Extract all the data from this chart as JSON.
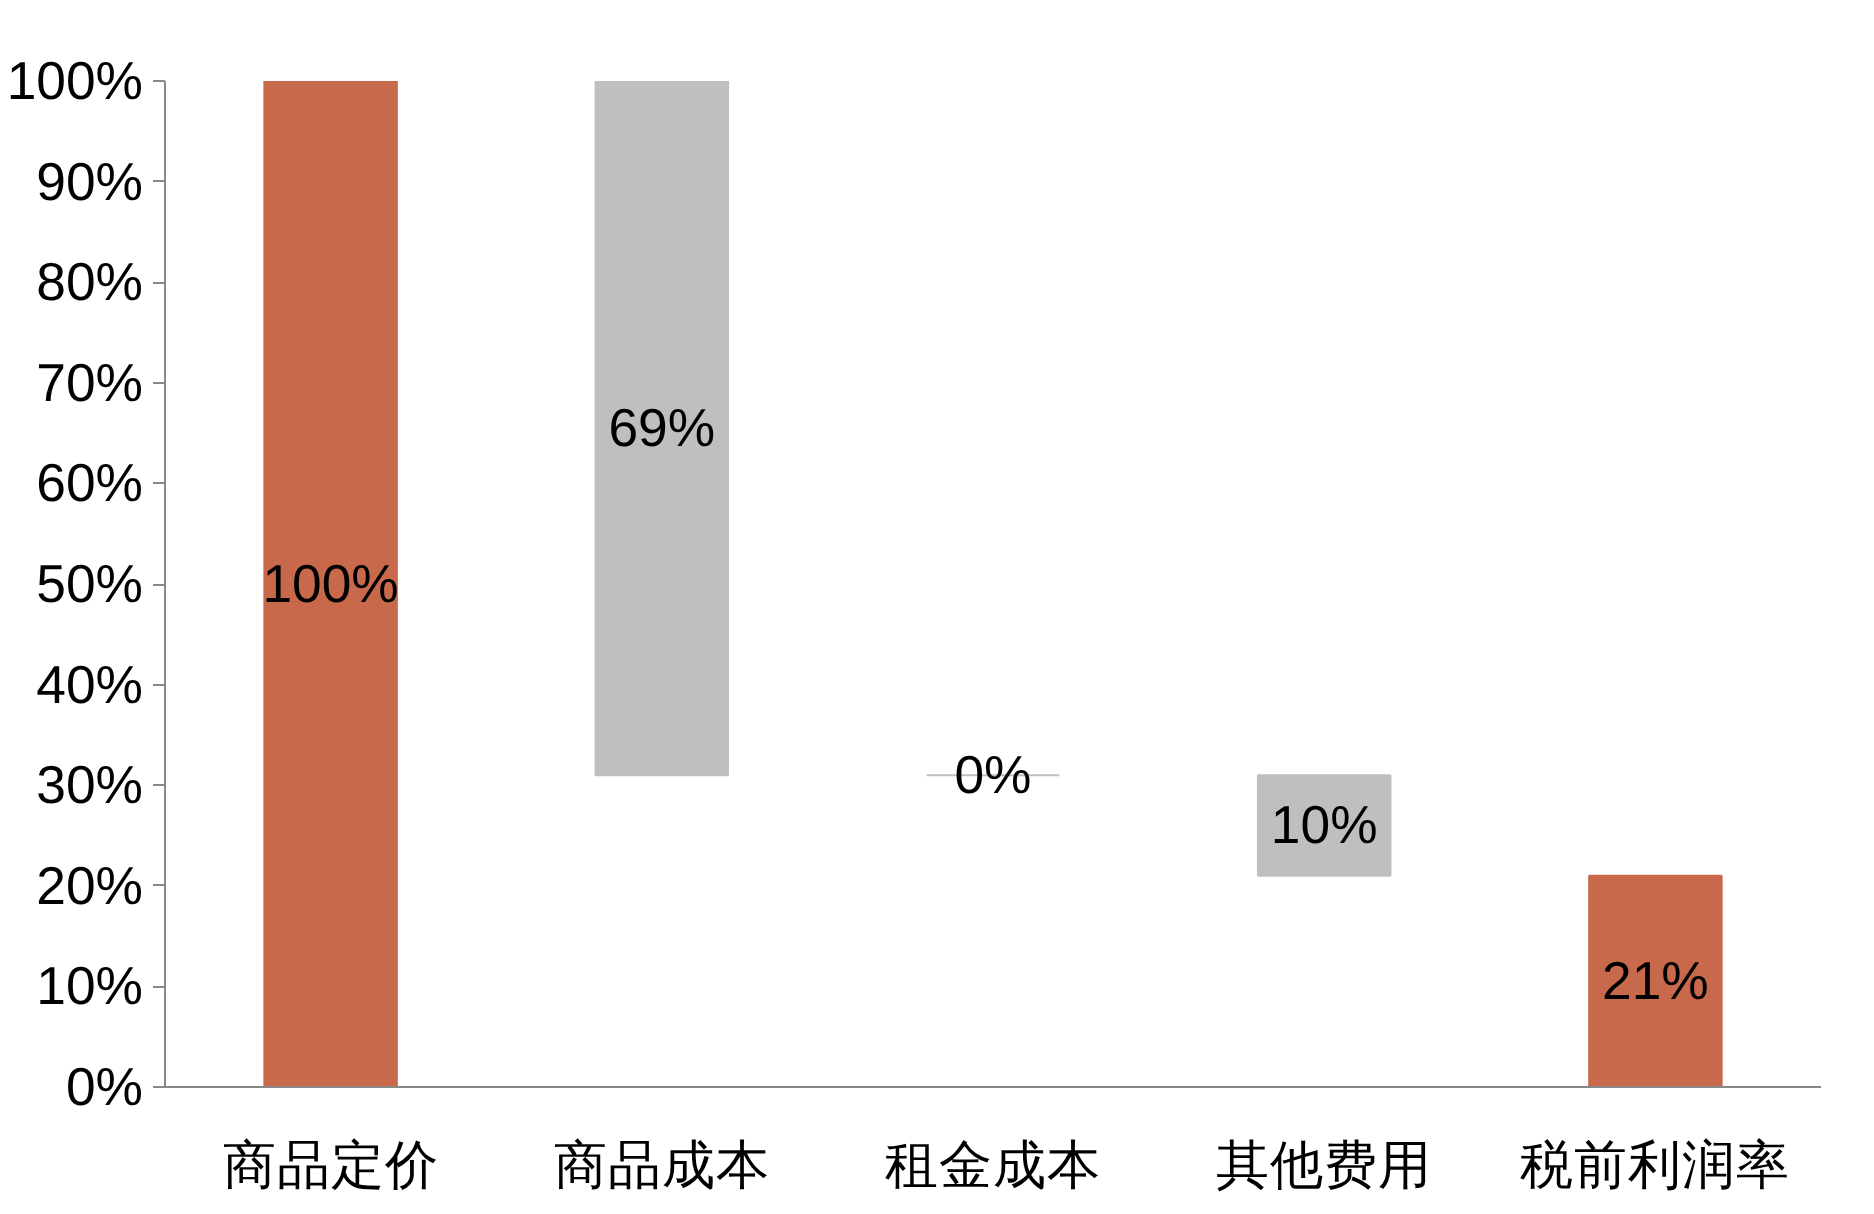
{
  "chart_data": {
    "type": "bar",
    "categories": [
      "商品定价",
      "商品成本",
      "租金成本",
      "其他费用",
      "税前利润率"
    ],
    "values": [
      100,
      69,
      0,
      10,
      21
    ],
    "base": [
      0,
      31,
      31,
      21,
      0
    ],
    "colors": [
      "#c8694b",
      "#bfbfbf",
      "#bfbfbf",
      "#bfbfbf",
      "#c8694b"
    ],
    "value_labels": [
      "100%",
      "69%",
      "0%",
      "10%",
      "21%"
    ],
    "ylim": [
      0,
      100
    ],
    "yticks": [
      {
        "value": 0,
        "label": "0%"
      },
      {
        "value": 10,
        "label": "10%"
      },
      {
        "value": 20,
        "label": "20%"
      },
      {
        "value": 30,
        "label": "30%"
      },
      {
        "value": 40,
        "label": "40%"
      },
      {
        "value": 50,
        "label": "50%"
      },
      {
        "value": 60,
        "label": "60%"
      },
      {
        "value": 70,
        "label": "70%"
      },
      {
        "value": 80,
        "label": "80%"
      },
      {
        "value": 90,
        "label": "90%"
      },
      {
        "value": 100,
        "label": "100%"
      }
    ],
    "grid": false
  }
}
